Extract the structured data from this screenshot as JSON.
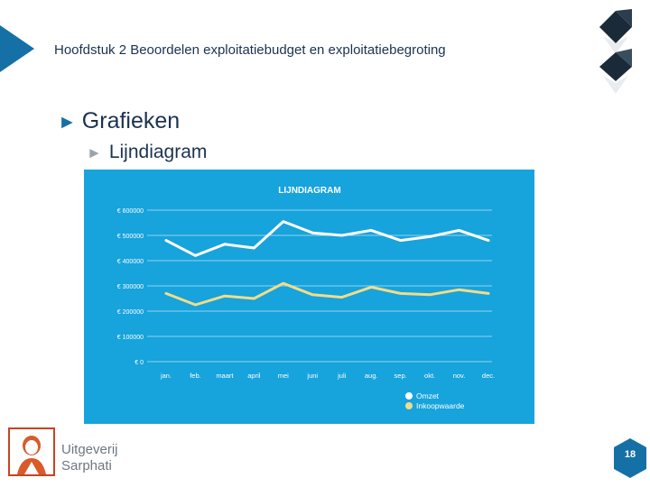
{
  "header": {
    "chapter_title": "Hoofdstuk 2 Beoordelen exploitatiebudget en exploitatiebegroting"
  },
  "headings": {
    "h1": "Grafieken",
    "h2": "Lijndiagram",
    "bullet_glyph": "►"
  },
  "footer": {
    "publisher_line1": "Uitgeverij",
    "publisher_line2": "Sarphati",
    "page_number": "18"
  },
  "colors": {
    "accent_blue": "#1570a6",
    "chart_background": "#17a3dc",
    "omzet_line": "#ffffff",
    "inkoopwaarde_line": "#f2dc8a",
    "logo_border": "#c8441f"
  },
  "icons": [
    "slide-corner-triangle",
    "hexagon-decoration",
    "publisher-logo"
  ],
  "chart_data": {
    "type": "line",
    "title": "LIJNDIAGRAM",
    "categories": [
      "jan.",
      "feb.",
      "maart",
      "april",
      "mei",
      "juni",
      "juli",
      "aug.",
      "sep.",
      "okt.",
      "nov.",
      "dec."
    ],
    "y_ticks": [
      "€ 0",
      "€ 100000",
      "€ 200000",
      "€ 300000",
      "€ 400000",
      "€ 500000",
      "€ 600000"
    ],
    "ylim": [
      0,
      600000
    ],
    "grid": true,
    "legend_position": "bottom-right",
    "series": [
      {
        "name": "Omzet",
        "values": [
          480000,
          420000,
          465000,
          450000,
          555000,
          510000,
          500000,
          520000,
          480000,
          495000,
          520000,
          480000
        ]
      },
      {
        "name": "Inkoopwaarde",
        "values": [
          270000,
          225000,
          260000,
          250000,
          310000,
          265000,
          255000,
          295000,
          270000,
          265000,
          285000,
          270000
        ]
      }
    ]
  }
}
